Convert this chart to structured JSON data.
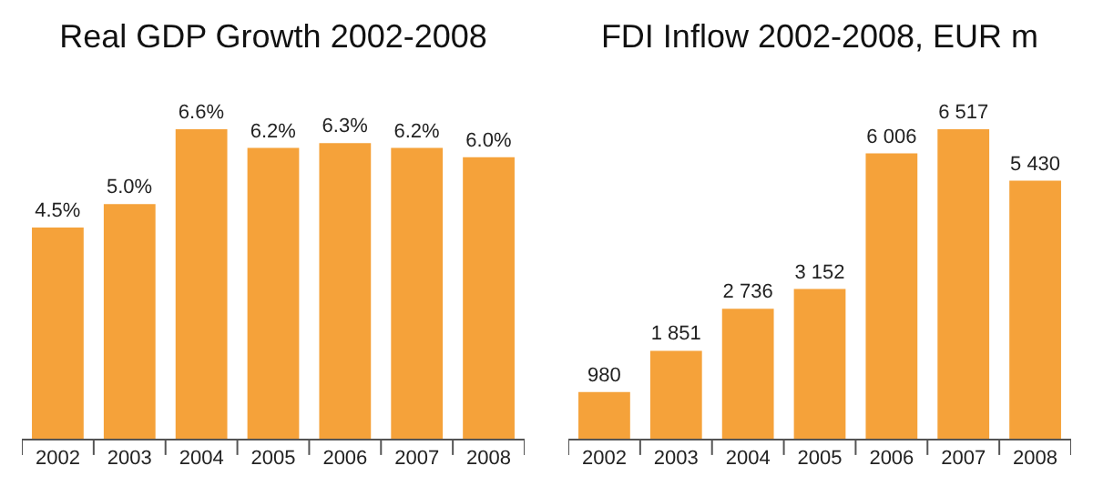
{
  "chart_data": [
    {
      "type": "bar",
      "title": "Real GDP Growth 2002-2008",
      "categories": [
        "2002",
        "2003",
        "2004",
        "2005",
        "2006",
        "2007",
        "2008"
      ],
      "values": [
        4.5,
        5.0,
        6.6,
        6.2,
        6.3,
        6.2,
        6.0
      ],
      "value_labels": [
        "4.5%",
        "5.0%",
        "6.6%",
        "6.2%",
        "6.3%",
        "6.2%",
        "6.0%"
      ],
      "color": "#f5a23a",
      "tick_labels": "x",
      "grid": false,
      "legend": false
    },
    {
      "type": "bar",
      "title": "FDI Inflow 2002-2008, EUR m",
      "categories": [
        "2002",
        "2003",
        "2004",
        "2005",
        "2006",
        "2007",
        "2008"
      ],
      "values": [
        980,
        1851,
        2736,
        3152,
        6006,
        6517,
        5430
      ],
      "value_labels": [
        "980",
        "1 851",
        "2 736",
        "3 152",
        "6 006",
        "6 517",
        "5 430"
      ],
      "color": "#f5a23a",
      "tick_labels": "x",
      "grid": false,
      "legend": false
    }
  ]
}
